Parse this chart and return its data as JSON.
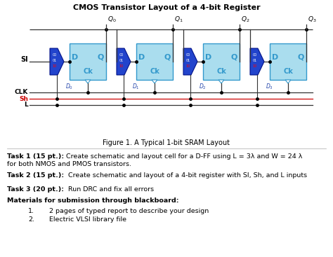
{
  "title": "CMOS Transistor Layout of a 4-bit Register",
  "figure_caption": "Figure 1. A Typical 1-bit SRAM Layout",
  "task1_bold": "Task 1 (15 pt.):",
  "task1_rest": " Create schematic and layout cell for a D-FF using L = 3λ and W = 24 λ",
  "task1_line2": "for both NMOS and PMOS transistors.",
  "task2_bold": "Task 2 (15 pt.):",
  "task2_rest": "  Create schematic and layout of a 4-bit register with SI, Sh, and L inputs",
  "task3_bold": "Task 3 (20 pt.):",
  "task3_rest": "  Run DRC and fix all errors",
  "materials_bold": "Materials for submission through blackboard:",
  "item1": "2 pages of typed report to describe your design",
  "item2": "Electric VLSI library file",
  "bg_color": "#ffffff",
  "dff_fill": "#aaddee",
  "dff_border": "#3399cc",
  "mux_fill": "#2244cc",
  "mux_border": "#001188",
  "wire_color": "#333333",
  "clk_color": "#333333",
  "sh_color": "#cc0000",
  "l_color": "#333333",
  "q_labels": [
    "Q_3",
    "Q_2",
    "Q_1",
    "Q_0"
  ],
  "d_labels": [
    "D_3",
    "D_2",
    "D_1",
    "D_0"
  ]
}
